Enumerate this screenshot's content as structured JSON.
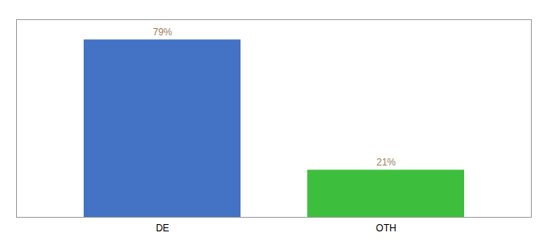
{
  "chart_data": {
    "type": "bar",
    "categories": [
      "DE",
      "OTH"
    ],
    "values": [
      79,
      21
    ],
    "value_labels": [
      "79%",
      "21%"
    ],
    "colors": [
      "#4472c4",
      "#3dbf3d"
    ],
    "ylim": [
      0,
      88
    ],
    "grid": false,
    "data_labels": true,
    "tick_labels": "x"
  }
}
